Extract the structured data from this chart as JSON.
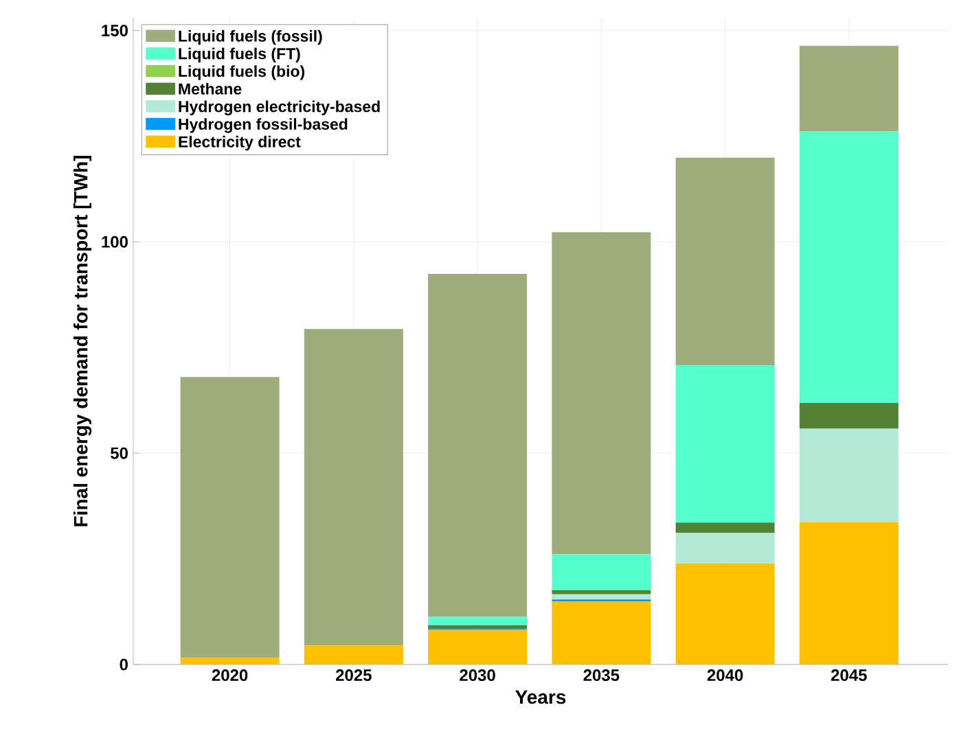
{
  "chart_data": {
    "type": "bar",
    "stacked": true,
    "xlabel": "Years",
    "ylabel": "Final energy demand for transport [TWh]",
    "categories": [
      "2020",
      "2025",
      "2030",
      "2035",
      "2040",
      "2045"
    ],
    "series": [
      {
        "name": "Electricity direct",
        "color": "#ffc000",
        "values": [
          1.6,
          4.5,
          8.2,
          14.9,
          23.9,
          33.7
        ]
      },
      {
        "name": "Hydrogen fossil-based",
        "color": "#0099ff",
        "values": [
          0,
          0,
          0.4,
          0.5,
          0,
          0
        ]
      },
      {
        "name": "Hydrogen electricity-based",
        "color": "#b3ead6",
        "values": [
          0,
          0,
          null,
          1.2,
          7.2,
          22.1
        ]
      },
      {
        "name": "Methane",
        "color": "#548235",
        "values": [
          0,
          0,
          0.7,
          1.0,
          2.5,
          6.1
        ]
      },
      {
        "name": "Liquid fuels (bio)",
        "color": "#92d050",
        "values": [
          0,
          0,
          0,
          0,
          0,
          0
        ]
      },
      {
        "name": "Liquid fuels (FT)",
        "color": "#55ffcc",
        "values": [
          0,
          0,
          2.0,
          8.5,
          37.2,
          64.2
        ]
      },
      {
        "name": "Liquid fuels (fossil)",
        "color": "#9fac7b",
        "values": [
          66.4,
          74.9,
          81.1,
          76.2,
          49.1,
          20.3
        ]
      }
    ],
    "ylim": [
      0,
      153
    ],
    "yticks": [
      0,
      50,
      100,
      150
    ],
    "grid": true,
    "legend": "top left"
  }
}
